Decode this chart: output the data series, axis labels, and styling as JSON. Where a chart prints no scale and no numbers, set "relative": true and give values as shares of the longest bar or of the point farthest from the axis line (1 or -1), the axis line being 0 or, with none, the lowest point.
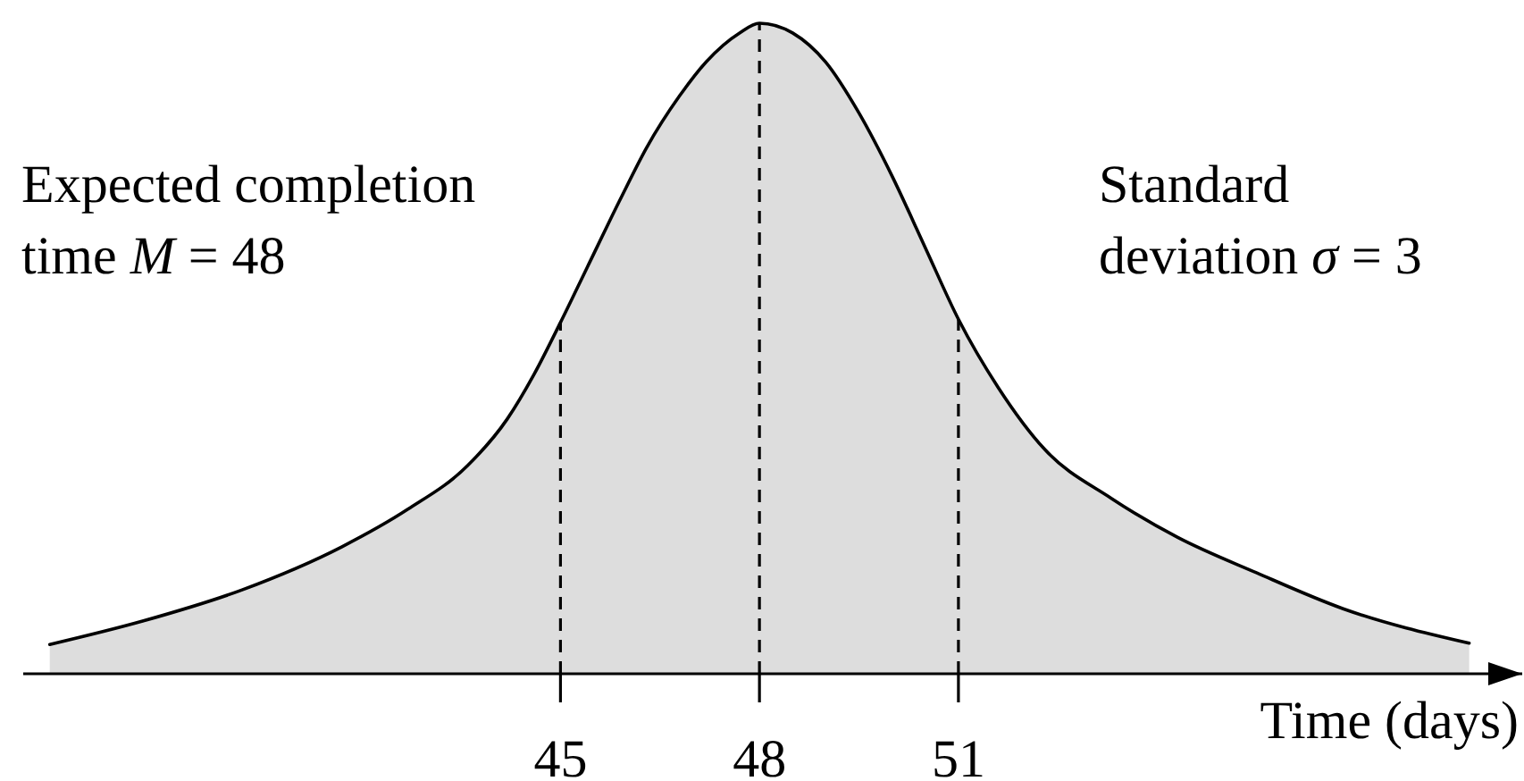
{
  "chart_data": {
    "type": "area",
    "relative": true,
    "x": [
      37.3,
      38.7,
      40.2,
      41.7,
      42.7,
      43.6,
      44.2,
      44.6,
      45.0,
      45.4,
      45.9,
      46.3,
      46.8,
      47.2,
      47.7,
      48.0,
      48.5,
      49.0,
      49.5,
      50.0,
      50.5,
      51.0,
      51.6,
      52.3,
      53.3,
      54.3,
      55.5,
      56.8,
      58.7
    ],
    "series": [
      {
        "color": "#dddddd",
        "values": [
          0.045,
          0.081,
          0.129,
          0.195,
          0.253,
          0.32,
          0.392,
          0.46,
          0.54,
          0.624,
          0.729,
          0.809,
          0.889,
          0.941,
          0.985,
          1,
          0.985,
          0.94,
          0.862,
          0.765,
          0.655,
          0.545,
          0.44,
          0.345,
          0.27,
          0.21,
          0.155,
          0.1,
          0.047
        ]
      }
    ],
    "xlim": [
      36.9,
      59.5
    ],
    "xticks": [
      45,
      48,
      51
    ],
    "xlabel": "Time (days)",
    "annotations": [
      "Expected completion time M = 48",
      "Standard deviation σ = 3"
    ],
    "ref_lines": [
      {
        "axis": "x",
        "value": 45,
        "color": "#000000",
        "line_style": "dashed"
      },
      {
        "axis": "x",
        "value": 48,
        "color": "#000000",
        "line_style": "dashed"
      },
      {
        "axis": "x",
        "value": 51,
        "color": "#000000",
        "line_style": "dashed"
      }
    ]
  }
}
